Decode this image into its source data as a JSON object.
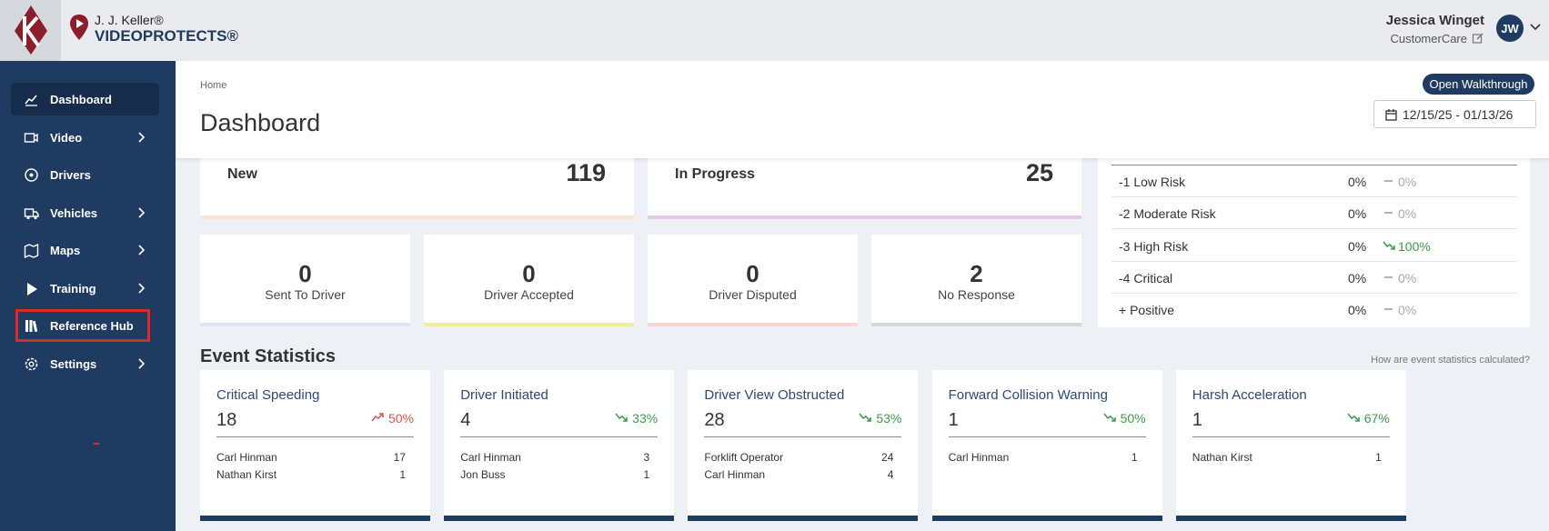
{
  "header": {
    "brand_top": "J. J. Keller®",
    "brand": "VIDEOPROTECTS®",
    "user_name": "Jessica Winget",
    "user_role": "CustomerCare",
    "avatar": "JW"
  },
  "sidebar": {
    "items": [
      {
        "label": "Dashboard",
        "active": true,
        "has_submenu": false,
        "highlighted": false
      },
      {
        "label": "Video",
        "active": false,
        "has_submenu": true,
        "highlighted": false
      },
      {
        "label": "Drivers",
        "active": false,
        "has_submenu": false,
        "highlighted": false
      },
      {
        "label": "Vehicles",
        "active": false,
        "has_submenu": true,
        "highlighted": false
      },
      {
        "label": "Maps",
        "active": false,
        "has_submenu": true,
        "highlighted": false
      },
      {
        "label": "Training",
        "active": false,
        "has_submenu": true,
        "highlighted": false
      },
      {
        "label": "Reference Hub",
        "active": false,
        "has_submenu": false,
        "highlighted": true
      },
      {
        "label": "Settings",
        "active": false,
        "has_submenu": true,
        "highlighted": false
      }
    ]
  },
  "page": {
    "breadcrumb": "Home",
    "title": "Dashboard",
    "walkthrough_button": "Open Walkthrough",
    "date_range": "12/15/25 - 01/13/26"
  },
  "status_cards": [
    {
      "label": "New",
      "value": 119,
      "color": "#fce5cf"
    },
    {
      "label": "In Progress",
      "value": 25,
      "color": "#e4c9ee"
    }
  ],
  "response_cards": [
    {
      "value": 0,
      "label": "Sent To Driver",
      "color": "#dde8f4"
    },
    {
      "value": 0,
      "label": "Driver Accepted",
      "color": "#f3ec9b"
    },
    {
      "value": 0,
      "label": "Driver Disputed",
      "color": "#f6d7d3"
    },
    {
      "value": 2,
      "label": "No Response",
      "color": "#d3d6db"
    }
  ],
  "risk_table": {
    "rows": [
      {
        "label": "-1 Low Risk",
        "percent": "0%",
        "change": "0%",
        "trend": "flat"
      },
      {
        "label": "-2 Moderate Risk",
        "percent": "0%",
        "change": "0%",
        "trend": "flat"
      },
      {
        "label": "-3 High Risk",
        "percent": "0%",
        "change": "100%",
        "trend": "down"
      },
      {
        "label": "-4 Critical",
        "percent": "0%",
        "change": "0%",
        "trend": "flat"
      },
      {
        "label": "+ Positive",
        "percent": "0%",
        "change": "0%",
        "trend": "flat"
      }
    ]
  },
  "event_statistics": {
    "title": "Event Statistics",
    "help_link": "How are event statistics calculated?",
    "cards": [
      {
        "title": "Critical Speeding",
        "count": 18,
        "change": "50%",
        "trend": "up",
        "drivers": [
          {
            "name": "Carl Hinman",
            "count": 17
          },
          {
            "name": "Nathan Kirst",
            "count": 1
          }
        ]
      },
      {
        "title": "Driver Initiated",
        "count": 4,
        "change": "33%",
        "trend": "down",
        "drivers": [
          {
            "name": "Carl Hinman",
            "count": 3
          },
          {
            "name": "Jon Buss",
            "count": 1
          }
        ]
      },
      {
        "title": "Driver View Obstructed",
        "count": 28,
        "change": "53%",
        "trend": "down",
        "drivers": [
          {
            "name": "Forklift Operator",
            "count": 24
          },
          {
            "name": "Carl Hinman",
            "count": 4
          }
        ]
      },
      {
        "title": "Forward Collision Warning",
        "count": 1,
        "change": "50%",
        "trend": "down",
        "drivers": [
          {
            "name": "Carl Hinman",
            "count": 1
          }
        ]
      },
      {
        "title": "Harsh Acceleration",
        "count": 1,
        "change": "67%",
        "trend": "down",
        "drivers": [
          {
            "name": "Nathan Kirst",
            "count": 1
          }
        ]
      }
    ]
  }
}
